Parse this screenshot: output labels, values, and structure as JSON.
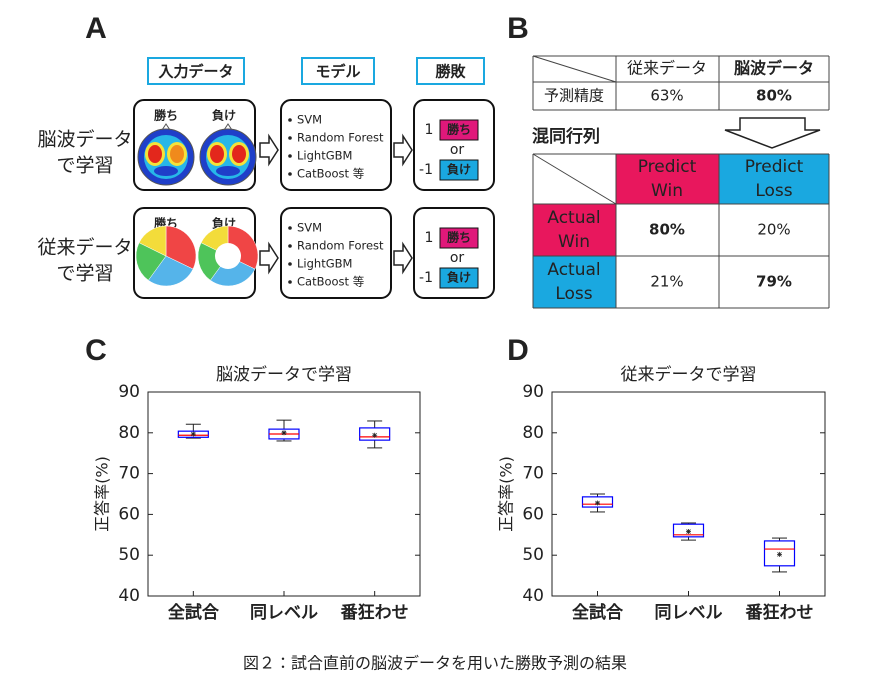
{
  "panel_labels": [
    "A",
    "B",
    "C",
    "D"
  ],
  "panel_a": {
    "headers": [
      "入力データ",
      "モデル",
      "勝敗"
    ],
    "rows": [
      {
        "label": [
          "脳波データ",
          "で学習"
        ],
        "win_tag": "勝ち",
        "lose_tag": "負け",
        "models": [
          "SVM",
          "Random Forest",
          "LightGBM",
          "CatBoost 等"
        ],
        "outcome": {
          "win_value": "1",
          "win": "勝ち",
          "or": "or",
          "lose_value": "-1",
          "lose": "負け"
        }
      },
      {
        "label": [
          "従来データ",
          "で学習"
        ],
        "win_tag": "勝ち",
        "lose_tag": "負け",
        "models": [
          "SVM",
          "Random Forest",
          "LightGBM",
          "CatBoost 等"
        ],
        "outcome": {
          "win_value": "1",
          "win": "勝ち",
          "or": "or",
          "lose_value": "-1",
          "lose": "負け"
        }
      }
    ]
  },
  "panel_b": {
    "accuracy_table": {
      "header": [
        "従来データ",
        "脳波データ"
      ],
      "row_label": "予測精度",
      "values": [
        "63%",
        "80%"
      ]
    },
    "confusion_title": "混同行列",
    "confusion": {
      "cols": [
        [
          "Predict",
          "Win"
        ],
        [
          "Predict",
          "Loss"
        ]
      ],
      "rows": [
        {
          "label": [
            "Actual",
            "Win"
          ],
          "values": [
            "80%",
            "20%"
          ]
        },
        {
          "label": [
            "Actual",
            "Loss"
          ],
          "values": [
            "21%",
            "79%"
          ]
        }
      ]
    }
  },
  "chart_data": [
    {
      "type": "box",
      "title": "脳波データで学習",
      "y_label": "正答率(%)",
      "categories": [
        "全試合",
        "同レベル",
        "番狂わせ"
      ],
      "boxes": [
        {
          "min": 78.7,
          "q1": 78.9,
          "median": 79.4,
          "q3": 80.4,
          "max": 82.1,
          "mean": 79.7
        },
        {
          "min": 78.0,
          "q1": 78.5,
          "median": 79.7,
          "q3": 80.9,
          "max": 83.1,
          "mean": 80.0
        },
        {
          "min": 76.3,
          "q1": 78.2,
          "median": 79.0,
          "q3": 81.2,
          "max": 82.9,
          "mean": 79.4
        }
      ],
      "box_color": "#0000ff",
      "median_color": "#ff0000",
      "ylim": [
        40,
        90
      ],
      "yticks": [
        40,
        50,
        60,
        70,
        80,
        90
      ],
      "grid": false
    },
    {
      "type": "box",
      "title": "従来データで学習",
      "y_label": "正答率(%)",
      "categories": [
        "全試合",
        "同レベル",
        "番狂わせ"
      ],
      "boxes": [
        {
          "min": 60.6,
          "q1": 61.8,
          "median": 62.5,
          "q3": 64.3,
          "max": 65.0,
          "mean": 62.8
        },
        {
          "min": 53.7,
          "q1": 54.5,
          "median": 55.0,
          "q3": 57.6,
          "max": 57.9,
          "mean": 55.8
        },
        {
          "min": 45.9,
          "q1": 47.4,
          "median": 51.5,
          "q3": 53.5,
          "max": 54.2,
          "mean": 50.2
        }
      ],
      "box_color": "#0000ff",
      "median_color": "#ff0000",
      "ylim": [
        40,
        90
      ],
      "yticks": [
        40,
        50,
        60,
        70,
        80,
        90
      ],
      "grid": false
    }
  ],
  "caption": "図２：試合直前の脳波データを用いた勝敗予測の結果"
}
